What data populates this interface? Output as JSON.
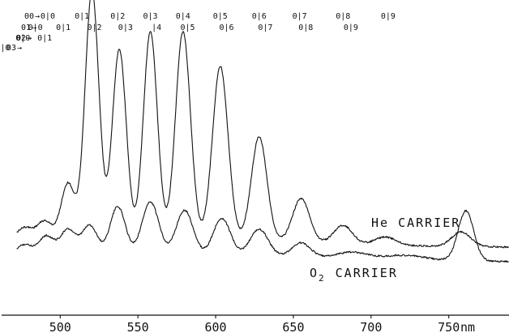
{
  "chart_data": {
    "type": "line",
    "xlabel": "nm",
    "xlim": [
      455,
      795
    ],
    "x_ticks": [
      500,
      550,
      600,
      650,
      700,
      750
    ],
    "y_ticks": [],
    "grid": false,
    "series": [
      {
        "name": "He CARRIER",
        "label_main": "He CARRIER",
        "label_sub": "",
        "peaks": [
          {
            "x": 463,
            "h": 0.05,
            "w": 4.5
          },
          {
            "x": 477,
            "h": 0.07,
            "w": 5
          },
          {
            "x": 490,
            "h": 0.1,
            "w": 5
          },
          {
            "x": 505,
            "h": 0.28,
            "w": 4.5
          },
          {
            "x": 519,
            "h": 0.66,
            "w": 4.2
          },
          {
            "x": 522,
            "h": 0.62,
            "w": 4.2
          },
          {
            "x": 538,
            "h": 0.92,
            "w": 4.5
          },
          {
            "x": 558,
            "h": 1.0,
            "w": 4.5
          },
          {
            "x": 579,
            "h": 1.0,
            "w": 4.8
          },
          {
            "x": 603,
            "h": 0.83,
            "w": 5
          },
          {
            "x": 628,
            "h": 0.5,
            "w": 5
          },
          {
            "x": 655,
            "h": 0.21,
            "w": 5.5
          },
          {
            "x": 682,
            "h": 0.09,
            "w": 6
          },
          {
            "x": 709,
            "h": 0.04,
            "w": 7
          },
          {
            "x": 758,
            "h": 0.07,
            "w": 6
          }
        ],
        "baseline": [
          [
            455,
            0
          ],
          [
            600,
            0.02
          ],
          [
            700,
            -0.01
          ],
          [
            795,
            -0.02
          ]
        ]
      },
      {
        "name": "O2 CARRIER",
        "label_main": "O",
        "label_sub": "2",
        "label_rest": "CARRIER",
        "peaks": [
          {
            "x": 463,
            "h": 0.03,
            "w": 5
          },
          {
            "x": 477,
            "h": 0.06,
            "w": 5
          },
          {
            "x": 491,
            "h": 0.1,
            "w": 5
          },
          {
            "x": 505,
            "h": 0.13,
            "w": 5
          },
          {
            "x": 519,
            "h": 0.15,
            "w": 5
          },
          {
            "x": 537,
            "h": 0.24,
            "w": 5
          },
          {
            "x": 558,
            "h": 0.26,
            "w": 5.5
          },
          {
            "x": 580,
            "h": 0.22,
            "w": 5.5
          },
          {
            "x": 604,
            "h": 0.18,
            "w": 5.5
          },
          {
            "x": 628,
            "h": 0.13,
            "w": 6
          },
          {
            "x": 655,
            "h": 0.07,
            "w": 6
          },
          {
            "x": 688,
            "h": 0.03,
            "w": 10
          },
          {
            "x": 722,
            "h": 0.02,
            "w": 12
          },
          {
            "x": 761,
            "h": 0.24,
            "w": 5
          }
        ],
        "baseline": [
          [
            455,
            0
          ],
          [
            600,
            0.01
          ],
          [
            795,
            -0.02
          ]
        ]
      }
    ],
    "annotations": {
      "band_rows": [
        {
          "prefix": "00",
          "items": [
            {
              "text": "0|0",
              "x": 492
            },
            {
              "text": "0|1",
              "x": 514
            },
            {
              "text": "0|2",
              "x": 537
            },
            {
              "text": "0|3",
              "x": 558
            },
            {
              "text": "0|4",
              "x": 579
            },
            {
              "text": "0|5",
              "x": 603
            },
            {
              "text": "0|6",
              "x": 628
            },
            {
              "text": "0|7",
              "x": 654
            },
            {
              "text": "0|8",
              "x": 682
            },
            {
              "text": "0|9",
              "x": 711
            }
          ]
        },
        {
          "prefix": "01",
          "items": [
            {
              "text": "0|0",
              "x": 484
            },
            {
              "text": "0|1",
              "x": 502
            },
            {
              "text": "0|2",
              "x": 522
            },
            {
              "text": "0|3",
              "x": 542
            },
            {
              "text": "|4",
              "x": 562
            },
            {
              "text": "0|5",
              "x": 582
            },
            {
              "text": "0|6",
              "x": 607
            },
            {
              "text": "0|7",
              "x": 632
            },
            {
              "text": "0|8",
              "x": 658
            },
            {
              "text": "0|9",
              "x": 687
            }
          ]
        },
        {
          "prefix": "02",
          "items": [
            {
              "text": "0|0",
              "x": 476
            },
            {
              "text": "0|1",
              "x": 490
            }
          ]
        },
        {
          "prefix": "03",
          "items": [
            {
              "text": "0|0",
              "x": 463
            }
          ]
        }
      ]
    }
  }
}
